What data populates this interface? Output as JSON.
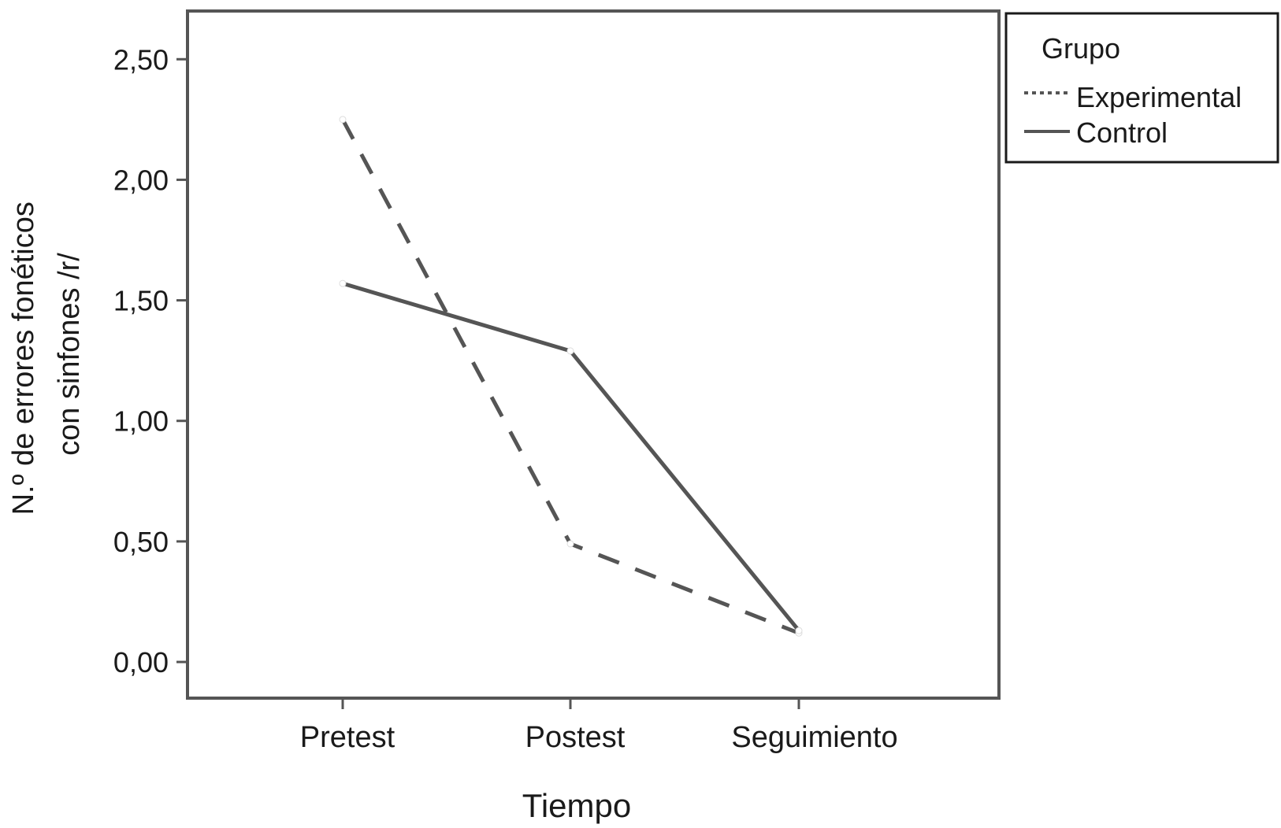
{
  "chart_data": {
    "type": "line",
    "categories": [
      "Pretest",
      "Postest",
      "Seguimiento"
    ],
    "series": [
      {
        "name": "Experimental",
        "values": [
          2.25,
          0.49,
          0.12
        ],
        "style": "dashed",
        "color": "#555555"
      },
      {
        "name": "Control",
        "values": [
          1.57,
          1.29,
          0.13
        ],
        "style": "solid",
        "color": "#555555"
      }
    ],
    "xlabel": "Tiempo",
    "ylabel": "N.º de errores fonéticos con sinfones /r/",
    "ylabel_lines": [
      "N.º de errores fonéticos",
      "con sinfones /r/"
    ],
    "yticks": [
      "0,00",
      "0,50",
      "1,00",
      "1,50",
      "2,00",
      "2,50"
    ],
    "ytick_values": [
      0,
      0.5,
      1.0,
      1.5,
      2.0,
      2.5
    ],
    "ylim": [
      -0.15,
      2.7
    ],
    "grid": false,
    "legend": {
      "title": "Grupo",
      "position": "top-right outside",
      "entries": [
        {
          "label": "Experimental",
          "style": "dotted"
        },
        {
          "label": "Control",
          "style": "solid"
        }
      ]
    }
  }
}
